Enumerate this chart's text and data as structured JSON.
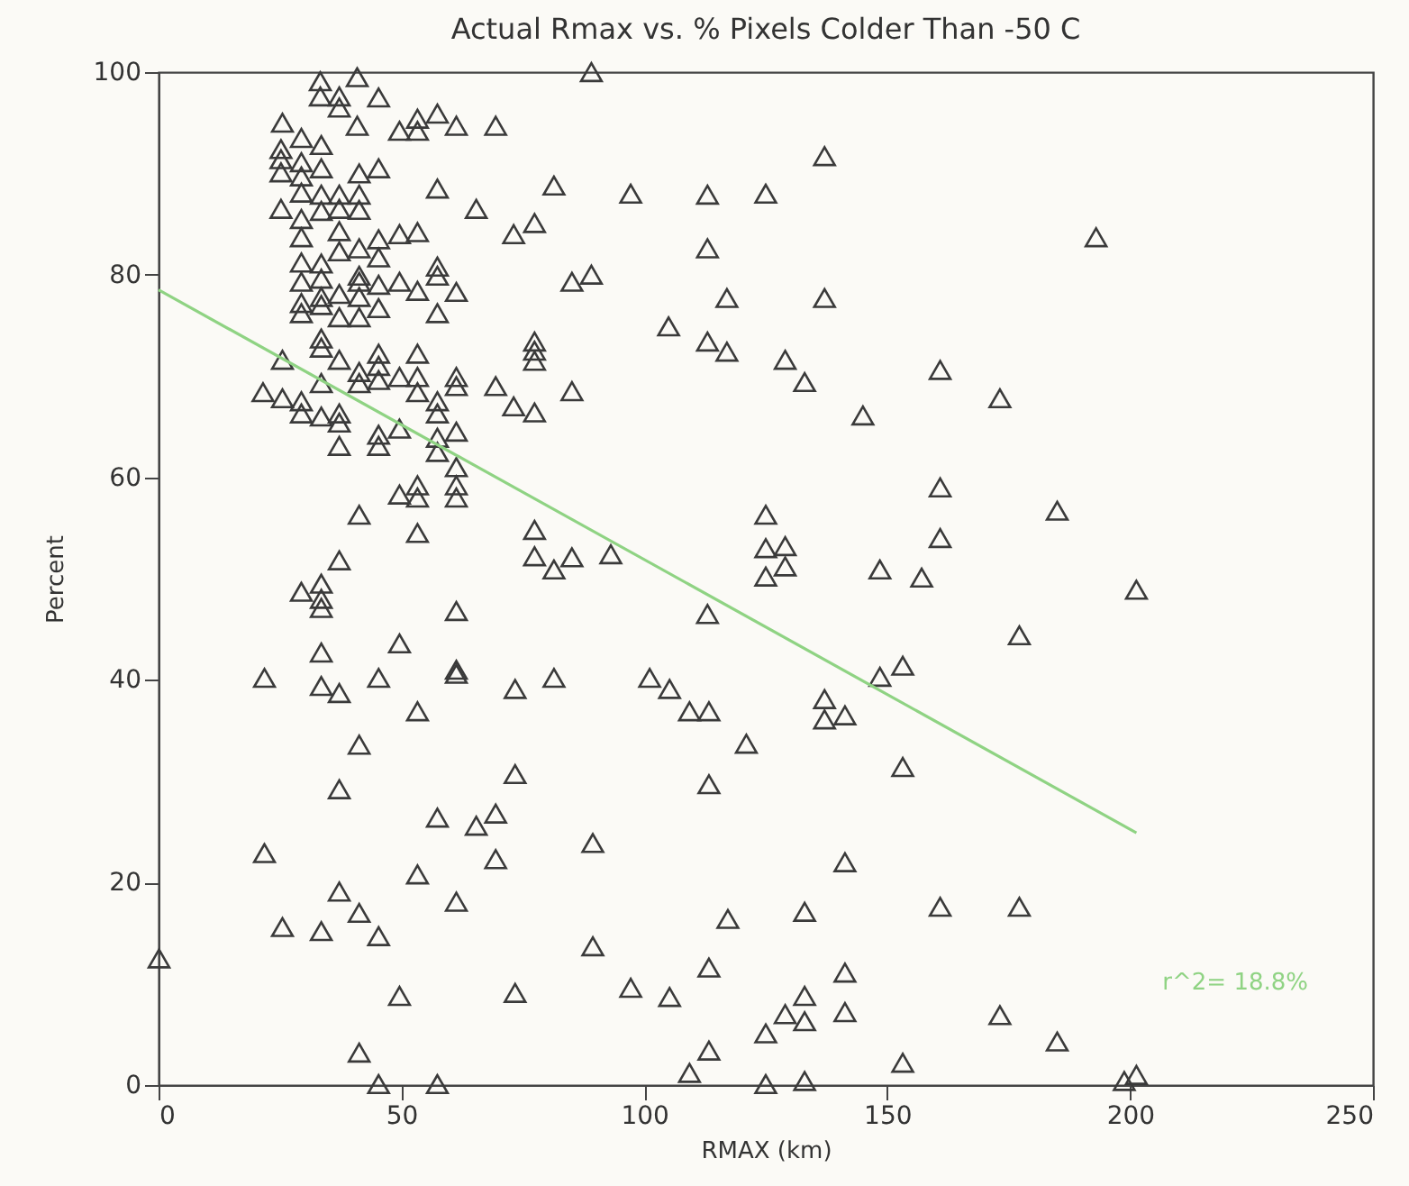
{
  "chart_data": {
    "type": "scatter",
    "title": "Actual Rmax vs. % Pixels Colder Than -50 C",
    "xlabel": "RMAX (km)",
    "ylabel": "Percent",
    "xlim": [
      0,
      250
    ],
    "xticks": [
      0,
      50,
      100,
      150,
      200,
      250
    ],
    "ylim": [
      0,
      100
    ],
    "yticks": [
      0,
      20,
      40,
      60,
      80,
      100
    ],
    "annotations": [
      "r^2=  18.8%"
    ],
    "series": [
      {
        "marker": "triangle",
        "color": "#3a3a3a",
        "x": [
          33.3,
          40.9,
          33.3,
          37.2,
          37.2,
          45.3,
          25.5,
          40.9,
          49.6,
          53.3,
          53.3,
          57.4,
          61.3,
          69.4,
          29.4,
          33.5,
          25.2,
          25.2,
          29.4,
          33.5,
          25.2,
          29.4,
          41.3,
          45.3,
          57.4,
          29.4,
          33.5,
          37.2,
          41.3,
          41.3,
          25.2,
          33.5,
          37.2,
          65.4,
          29.4,
          37.2,
          45.3,
          49.6,
          53.3,
          29.4,
          37.2,
          41.3,
          29.4,
          33.5,
          45.3,
          57.4,
          57.4,
          29.4,
          33.5,
          41.3,
          41.3,
          45.3,
          49.6,
          53.3,
          61.3,
          29.4,
          29.4,
          33.5,
          33.5,
          37.2,
          41.3,
          41.3,
          45.3,
          37.2,
          57.4,
          33.5,
          33.5,
          25.5,
          37.2,
          41.3,
          45.3,
          45.3,
          53.3,
          41.3,
          45.3,
          49.6,
          53.3,
          61.3,
          61.3,
          69.4,
          21.5,
          25.5,
          29.4,
          29.4,
          33.5,
          33.5,
          37.2,
          37.2,
          53.3,
          57.4,
          57.4,
          37.2,
          45.3,
          45.3,
          49.6,
          57.4,
          57.4,
          61.3,
          61.3,
          49.6,
          53.3,
          53.3,
          61.3,
          61.3,
          41.3,
          53.3,
          37.2,
          29.4,
          33.5,
          33.5,
          33.5,
          61.3,
          33.5,
          49.6,
          21.8,
          33.5,
          37.2,
          45.3,
          61.3,
          61.3,
          53.3,
          41.3,
          37.2,
          57.4,
          65.4,
          69.4,
          21.8,
          69.4,
          53.3,
          37.2,
          41.3,
          61.3,
          25.5,
          33.5,
          45.3,
          49.6,
          41.3,
          45.3,
          57.4,
          0.1,
          89.1,
          137.1,
          81.4,
          97.2,
          113.0,
          125.0,
          77.4,
          73.1,
          113.0,
          85.1,
          89.1,
          117.0,
          137.1,
          105.0,
          113.0,
          117.0,
          129.0,
          133.0,
          77.4,
          77.4,
          77.4,
          73.1,
          77.4,
          85.1,
          145.0,
          77.4,
          77.4,
          81.4,
          85.1,
          93.1,
          125.0,
          125.0,
          129.0,
          129.0,
          125.0,
          148.5,
          113.0,
          73.4,
          81.4,
          101.1,
          105.2,
          109.3,
          113.3,
          121.0,
          137.1,
          137.1,
          141.3,
          148.5,
          73.4,
          113.3,
          89.4,
          141.3,
          117.2,
          133.0,
          89.4,
          73.4,
          97.2,
          105.2,
          113.3,
          141.3,
          133.0,
          129.0,
          133.0,
          141.3,
          125.0,
          113.3,
          109.3,
          125.0,
          133.0,
          193.0,
          160.9,
          173.2,
          160.9,
          185.0,
          160.9,
          157.1,
          201.3,
          177.2,
          153.2,
          153.2,
          160.9,
          177.2,
          173.2,
          185.0,
          153.2,
          201.3,
          198.8
        ],
        "values": [
          99.1,
          99.5,
          97.6,
          97.6,
          96.5,
          97.5,
          95.0,
          94.7,
          94.2,
          95.4,
          94.2,
          95.9,
          94.7,
          94.7,
          93.5,
          92.8,
          92.4,
          91.4,
          91.1,
          90.5,
          90.1,
          89.7,
          90.0,
          90.5,
          88.5,
          88.1,
          87.9,
          87.9,
          87.9,
          86.4,
          86.5,
          86.3,
          86.5,
          86.5,
          85.5,
          84.3,
          83.5,
          84.0,
          84.2,
          83.7,
          82.3,
          82.6,
          81.2,
          81.1,
          81.7,
          80.8,
          79.9,
          79.3,
          79.6,
          79.9,
          79.3,
          79.0,
          79.3,
          78.4,
          78.3,
          77.2,
          76.2,
          77.8,
          77.0,
          78.1,
          77.8,
          75.8,
          76.7,
          75.8,
          76.2,
          73.7,
          72.8,
          71.6,
          71.6,
          70.4,
          72.2,
          71.0,
          72.2,
          69.3,
          69.6,
          69.9,
          69.9,
          69.9,
          69.0,
          69.0,
          68.4,
          67.8,
          67.5,
          66.3,
          69.3,
          66.0,
          66.3,
          65.4,
          68.4,
          67.5,
          66.3,
          63.1,
          64.2,
          63.1,
          64.8,
          63.9,
          62.5,
          64.5,
          61.0,
          58.3,
          59.2,
          58.0,
          59.2,
          58.0,
          56.3,
          54.5,
          51.8,
          48.7,
          49.5,
          48.0,
          47.1,
          46.8,
          42.7,
          43.6,
          40.2,
          39.4,
          38.7,
          40.2,
          41.0,
          40.6,
          36.9,
          33.6,
          29.2,
          26.4,
          25.6,
          26.8,
          22.9,
          22.3,
          20.8,
          19.1,
          17.0,
          18.1,
          15.6,
          15.2,
          14.7,
          8.8,
          3.2,
          0.1,
          0.1,
          12.5,
          100.0,
          91.7,
          88.8,
          88.0,
          87.9,
          88.0,
          85.1,
          84.0,
          82.6,
          79.3,
          80.0,
          77.7,
          77.7,
          74.9,
          73.4,
          72.4,
          71.6,
          69.4,
          73.4,
          72.5,
          71.5,
          67.0,
          66.4,
          68.5,
          66.1,
          54.8,
          52.2,
          50.9,
          52.1,
          52.4,
          56.3,
          53.0,
          53.2,
          51.2,
          50.2,
          50.9,
          46.5,
          39.1,
          40.2,
          40.2,
          39.1,
          36.9,
          36.9,
          33.7,
          38.1,
          36.1,
          36.5,
          40.3,
          30.7,
          29.7,
          23.9,
          22.0,
          16.4,
          17.1,
          13.7,
          9.1,
          9.6,
          8.7,
          11.6,
          11.1,
          8.8,
          7.0,
          6.3,
          7.2,
          5.1,
          3.4,
          1.2,
          0.1,
          0.4,
          83.7,
          70.6,
          67.8,
          59.0,
          56.7,
          54.0,
          50.1,
          48.9,
          44.4,
          41.4,
          31.4,
          17.6,
          17.6,
          6.9,
          4.3,
          2.2,
          1.0,
          0.4
        ]
      },
      {
        "type": "line",
        "color": "#8fd383",
        "x": [
          0,
          201.3
        ],
        "values": [
          78.5,
          24.9
        ]
      }
    ]
  }
}
